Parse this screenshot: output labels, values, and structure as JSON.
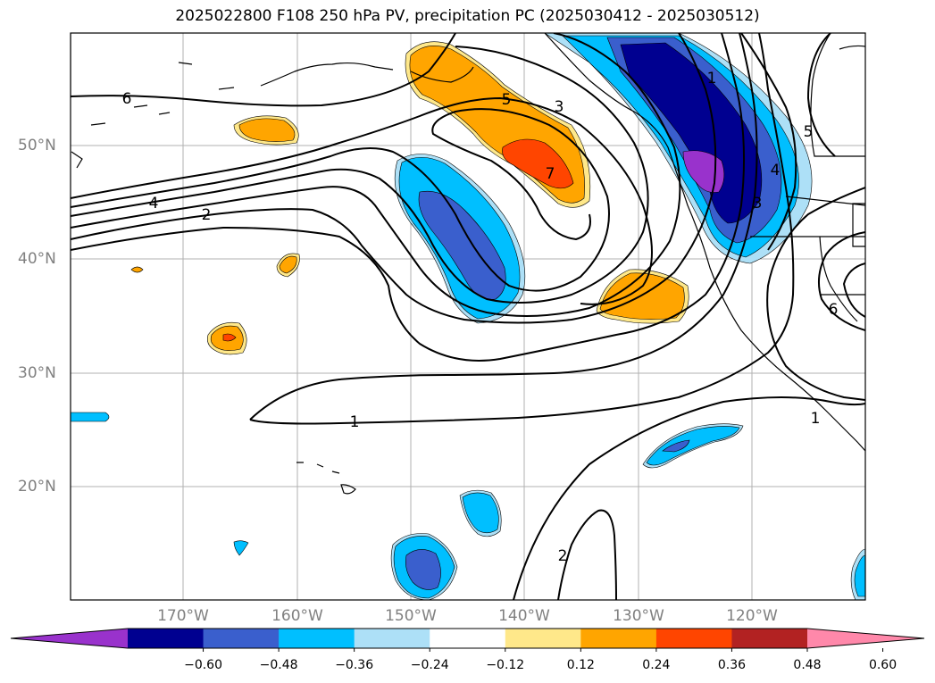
{
  "title": "2025022800 F108 250 hPa PV, precipitation PC (2025030412 - 2025030512)",
  "lat_labels": [
    "50°N",
    "40°N",
    "30°N",
    "20°N"
  ],
  "lon_labels": [
    "170°W",
    "160°W",
    "150°W",
    "140°W",
    "130°W",
    "120°W"
  ],
  "contour_labels": [
    "6",
    "4",
    "2",
    "5",
    "3",
    "7",
    "1",
    "1",
    "2",
    "4",
    "5",
    "3",
    "6",
    "1"
  ],
  "colorbar": {
    "colors": [
      "#9932CC",
      "#000090",
      "#3A5FCD",
      "#00BFFF",
      "#ADE0F7",
      "#FFFFFF",
      "#FFE88A",
      "#FFA500",
      "#FF4500",
      "#B22222",
      "#FF88AA"
    ],
    "ticks": [
      "−0.60",
      "−0.48",
      "−0.36",
      "−0.24",
      "−0.12",
      "0.12",
      "0.24",
      "0.36",
      "0.48",
      "0.60"
    ]
  }
}
